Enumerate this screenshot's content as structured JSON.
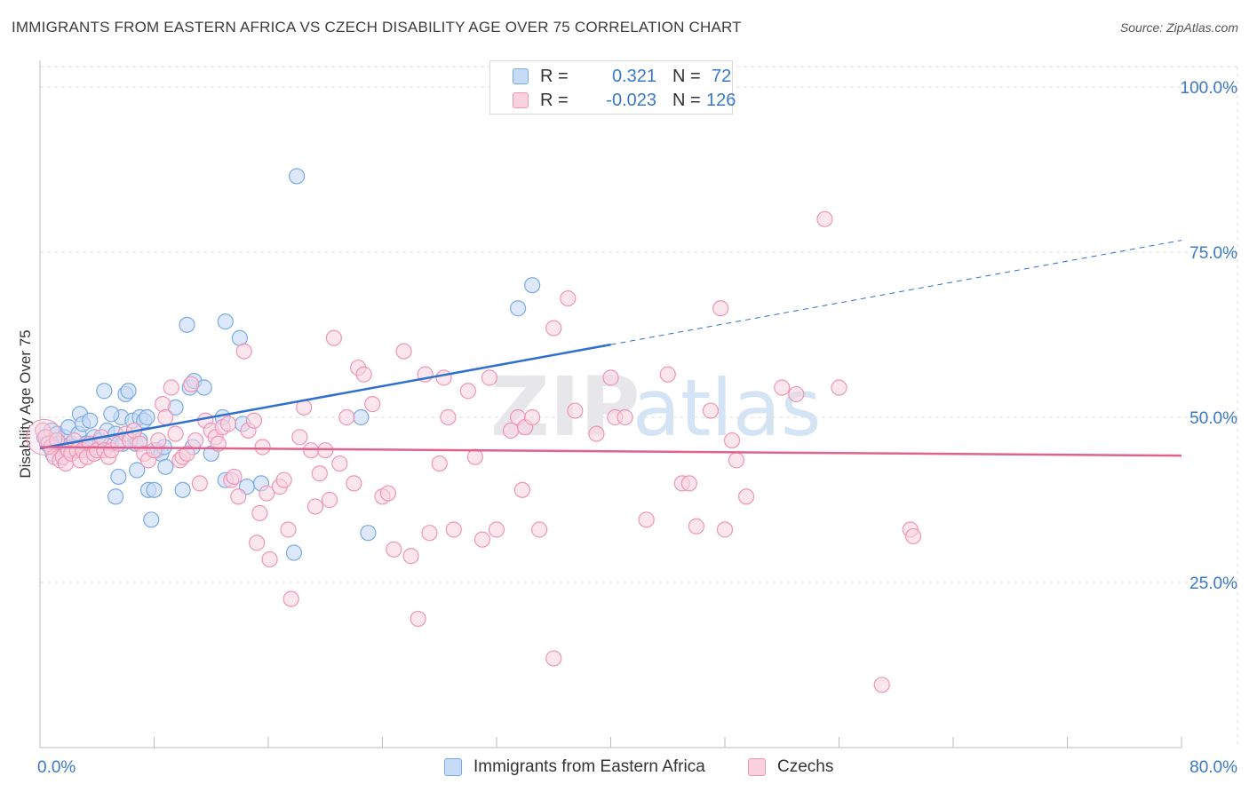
{
  "title": "IMMIGRANTS FROM EASTERN AFRICA VS CZECH DISABILITY AGE OVER 75 CORRELATION CHART",
  "source": "Source: ZipAtlas.com",
  "watermark": {
    "zip": "ZIP",
    "atlas": "atlas"
  },
  "colors": {
    "blue_fill": "#c6dbf7",
    "blue_stroke": "#7aaae6",
    "blue_line": "#2f6fce",
    "pink_fill": "#fad1df",
    "pink_stroke": "#ef95b5",
    "pink_line": "#e0628f",
    "axis_text": "#3a78c9",
    "grid": "#dcdcdc"
  },
  "legend": {
    "rows": [
      {
        "r_label": "R =",
        "r_value": "0.321",
        "n_label": "N =",
        "n_value": "72"
      },
      {
        "r_label": "R =",
        "r_value": "-0.023",
        "n_label": "N =",
        "n_value": "126"
      }
    ]
  },
  "bottom_legend": [
    "Immigrants from Eastern Africa",
    "Czechs"
  ],
  "chart_data": {
    "type": "scatter",
    "title": "IMMIGRANTS FROM EASTERN AFRICA VS CZECH DISABILITY AGE OVER 75 CORRELATION CHART",
    "xlabel": "",
    "ylabel": "Disability Age Over 75",
    "xlim": [
      0,
      80
    ],
    "ylim": [
      0,
      105
    ],
    "x_tick_labels": [
      "0.0%",
      "80.0%"
    ],
    "y_ticks": [
      25,
      50,
      75,
      100
    ],
    "y_tick_labels": [
      "25.0%",
      "50.0%",
      "75.0%",
      "100.0%"
    ],
    "grid": true,
    "series": [
      {
        "name": "Immigrants from Eastern Africa",
        "color": "blue",
        "r": 0.321,
        "n": 72,
        "trend": {
          "x0": 0,
          "y0": 45.3,
          "x1": 40,
          "y1": 61.0,
          "dash_to_x": 80,
          "dash_to_y": 76.8
        },
        "points": [
          [
            0.3,
            47
          ],
          [
            0.5,
            46
          ],
          [
            0.7,
            45.5
          ],
          [
            0.8,
            48
          ],
          [
            1,
            46.5
          ],
          [
            1.2,
            47.5
          ],
          [
            1.3,
            46
          ],
          [
            1.5,
            45.5
          ],
          [
            1.7,
            47
          ],
          [
            2,
            48.5
          ],
          [
            2.2,
            46
          ],
          [
            2.5,
            45
          ],
          [
            2.7,
            47.5
          ],
          [
            2.8,
            50.5
          ],
          [
            3,
            49
          ],
          [
            3.2,
            46
          ],
          [
            3.5,
            49.5
          ],
          [
            3.7,
            45.5
          ],
          [
            3.8,
            47
          ],
          [
            4,
            46
          ],
          [
            4.2,
            46.5
          ],
          [
            4.5,
            45
          ],
          [
            4.7,
            48
          ],
          [
            5,
            46
          ],
          [
            5.3,
            47.5
          ],
          [
            5.7,
            50
          ],
          [
            4.5,
            54
          ],
          [
            5,
            50.5
          ],
          [
            5.5,
            41
          ],
          [
            5.3,
            38
          ],
          [
            6,
            53.5
          ],
          [
            6.2,
            54
          ],
          [
            6.5,
            49.5
          ],
          [
            6.7,
            46
          ],
          [
            7,
            46.5
          ],
          [
            7,
            50
          ],
          [
            6.8,
            42
          ],
          [
            7.3,
            49.5
          ],
          [
            7.5,
            50
          ],
          [
            7.6,
            39
          ],
          [
            8,
            39
          ],
          [
            7.8,
            34.5
          ],
          [
            8.2,
            45
          ],
          [
            8.5,
            44.5
          ],
          [
            8.7,
            45.5
          ],
          [
            8.8,
            42.5
          ],
          [
            9.5,
            51.5
          ],
          [
            10,
            39
          ],
          [
            10.3,
            64
          ],
          [
            10.5,
            54.5
          ],
          [
            10.8,
            55.5
          ],
          [
            10.7,
            45.5
          ],
          [
            11.5,
            54.5
          ],
          [
            12,
            44.5
          ],
          [
            12.8,
            50
          ],
          [
            13,
            40.5
          ],
          [
            13,
            64.5
          ],
          [
            14,
            62
          ],
          [
            14.2,
            49
          ],
          [
            14.5,
            39.5
          ],
          [
            15.5,
            40
          ],
          [
            17.8,
            29.5
          ],
          [
            18,
            86.5
          ],
          [
            22.5,
            50
          ],
          [
            23,
            32.5
          ],
          [
            33.5,
            66.5
          ],
          [
            34.5,
            70
          ],
          [
            3.2,
            46
          ],
          [
            2.3,
            45.5
          ],
          [
            1.8,
            44.5
          ],
          [
            0.9,
            44.5
          ],
          [
            5.8,
            46
          ]
        ]
      },
      {
        "name": "Czechs",
        "color": "pink",
        "r": -0.023,
        "n": 126,
        "trend": {
          "x0": 0,
          "y0": 45.5,
          "x1": 80,
          "y1": 44.2
        },
        "points": [
          [
            0.2,
            48
          ],
          [
            0.4,
            47
          ],
          [
            0.6,
            46
          ],
          [
            0.8,
            45.5
          ],
          [
            1,
            44
          ],
          [
            1.2,
            46.5
          ],
          [
            1.4,
            43.5
          ],
          [
            1.6,
            44
          ],
          [
            1.8,
            43
          ],
          [
            2,
            45
          ],
          [
            2.2,
            44.5
          ],
          [
            2.4,
            46.5
          ],
          [
            2.6,
            45
          ],
          [
            2.8,
            43.5
          ],
          [
            3,
            45
          ],
          [
            3.3,
            44
          ],
          [
            3.5,
            46
          ],
          [
            3.8,
            44.5
          ],
          [
            4,
            45
          ],
          [
            4.3,
            47
          ],
          [
            4.5,
            45
          ],
          [
            4.8,
            44
          ],
          [
            5,
            45
          ],
          [
            5.5,
            46
          ],
          [
            6,
            47.5
          ],
          [
            6.3,
            46.5
          ],
          [
            6.6,
            48
          ],
          [
            7,
            46
          ],
          [
            7.3,
            44.5
          ],
          [
            7.6,
            43.5
          ],
          [
            8,
            45
          ],
          [
            8.3,
            46.5
          ],
          [
            8.6,
            52
          ],
          [
            8.8,
            50
          ],
          [
            9.2,
            54.5
          ],
          [
            9.5,
            47.5
          ],
          [
            9.8,
            43.5
          ],
          [
            10,
            44
          ],
          [
            10.3,
            44.5
          ],
          [
            10.6,
            55
          ],
          [
            10.9,
            46.5
          ],
          [
            11.2,
            40
          ],
          [
            11.6,
            49.5
          ],
          [
            12,
            48
          ],
          [
            12.3,
            47
          ],
          [
            12.5,
            46
          ],
          [
            12.8,
            48.5
          ],
          [
            13.2,
            49
          ],
          [
            13.4,
            40.5
          ],
          [
            13.6,
            41
          ],
          [
            13.9,
            38
          ],
          [
            14.3,
            60
          ],
          [
            14.6,
            48
          ],
          [
            15,
            49.5
          ],
          [
            15.4,
            35.5
          ],
          [
            15.6,
            45.5
          ],
          [
            15.9,
            38.5
          ],
          [
            16.1,
            28.5
          ],
          [
            15.2,
            31
          ],
          [
            16.8,
            39.5
          ],
          [
            17.1,
            40.5
          ],
          [
            17.4,
            33
          ],
          [
            17.6,
            22.5
          ],
          [
            18.2,
            47
          ],
          [
            18.5,
            51.5
          ],
          [
            19,
            45
          ],
          [
            19.3,
            36.5
          ],
          [
            19.6,
            41.5
          ],
          [
            20,
            45
          ],
          [
            20.3,
            37.5
          ],
          [
            20.6,
            62
          ],
          [
            21,
            43
          ],
          [
            21.5,
            50
          ],
          [
            22,
            40
          ],
          [
            22.3,
            57.5
          ],
          [
            22.7,
            56.5
          ],
          [
            23.3,
            52
          ],
          [
            24,
            38
          ],
          [
            24.4,
            38.5
          ],
          [
            24.8,
            30
          ],
          [
            25.5,
            60
          ],
          [
            26,
            29
          ],
          [
            26.5,
            19.5
          ],
          [
            27,
            56.5
          ],
          [
            27.3,
            32.5
          ],
          [
            28,
            43
          ],
          [
            28.3,
            56
          ],
          [
            28.6,
            50
          ],
          [
            29,
            33
          ],
          [
            30,
            54
          ],
          [
            30.5,
            44
          ],
          [
            31,
            31.5
          ],
          [
            31.5,
            56
          ],
          [
            32,
            33
          ],
          [
            33,
            48
          ],
          [
            33.5,
            50
          ],
          [
            33.8,
            39
          ],
          [
            34,
            48.5
          ],
          [
            34.5,
            50
          ],
          [
            35,
            33
          ],
          [
            36,
            13.5
          ],
          [
            36,
            63.5
          ],
          [
            37,
            68
          ],
          [
            37.5,
            51
          ],
          [
            39,
            47.5
          ],
          [
            40,
            56
          ],
          [
            40.3,
            50
          ],
          [
            41,
            50
          ],
          [
            42.5,
            34.5
          ],
          [
            44,
            56.5
          ],
          [
            45,
            40
          ],
          [
            45.5,
            40
          ],
          [
            46,
            33.5
          ],
          [
            47,
            51
          ],
          [
            47.7,
            66.5
          ],
          [
            48,
            33
          ],
          [
            48.5,
            46.5
          ],
          [
            48.8,
            43.5
          ],
          [
            49.5,
            38
          ],
          [
            52,
            54.5
          ],
          [
            53,
            53.5
          ],
          [
            55,
            80
          ],
          [
            56,
            54.5
          ],
          [
            59,
            9.5
          ],
          [
            61,
            33
          ],
          [
            61.2,
            32
          ]
        ]
      }
    ]
  }
}
